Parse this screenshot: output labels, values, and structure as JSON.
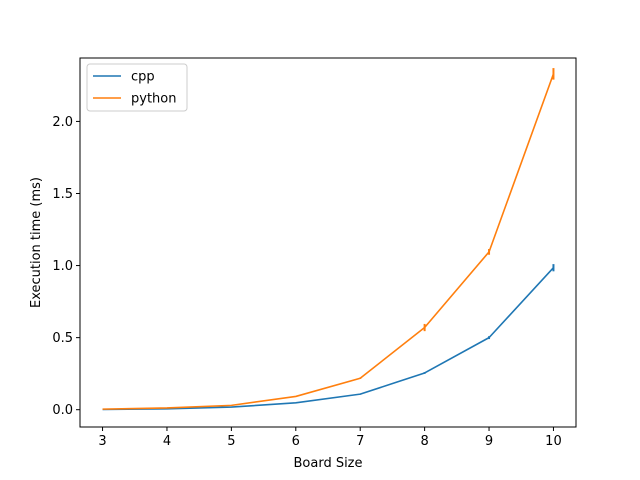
{
  "chart_data": {
    "type": "line",
    "xlabel": "Board Size",
    "ylabel": "Execution time (ms)",
    "x": [
      3,
      4,
      5,
      6,
      7,
      8,
      9,
      10
    ],
    "xlim": [
      2.65,
      10.35
    ],
    "ylim": [
      -0.12,
      2.44
    ],
    "xticks": [
      3,
      4,
      5,
      6,
      7,
      8,
      9,
      10
    ],
    "yticks": [
      0.0,
      0.5,
      1.0,
      1.5,
      2.0
    ],
    "ytick_labels": [
      "0.0",
      "0.5",
      "1.0",
      "1.5",
      "2.0"
    ],
    "grid": false,
    "legend_position": "upper-left",
    "series": [
      {
        "name": "cpp",
        "color": "#1f77b4",
        "values": [
          0.002,
          0.006,
          0.018,
          0.048,
          0.108,
          0.255,
          0.5,
          0.985
        ],
        "error": [
          0,
          0,
          0,
          0.002,
          0.004,
          0.006,
          0.01,
          0.025
        ]
      },
      {
        "name": "python",
        "color": "#ff7f0e",
        "values": [
          0.004,
          0.012,
          0.03,
          0.092,
          0.218,
          0.57,
          1.095,
          2.33
        ],
        "error": [
          0,
          0,
          0,
          0.003,
          0.005,
          0.025,
          0.02,
          0.04
        ]
      }
    ]
  }
}
